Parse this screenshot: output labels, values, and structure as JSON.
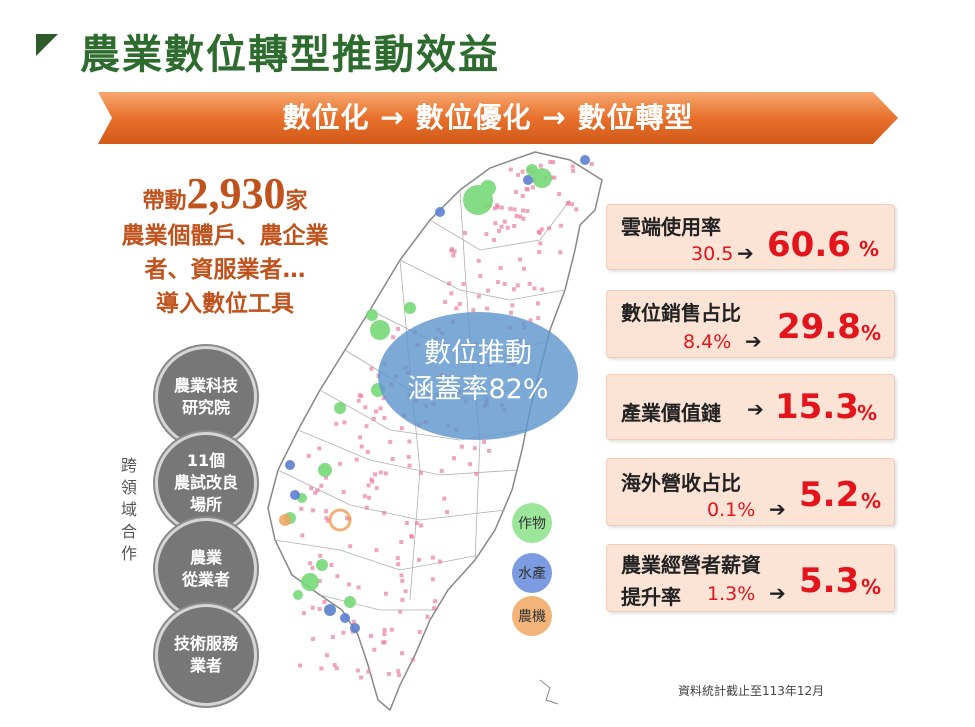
{
  "title": "農業數位轉型推動效益",
  "banner": "數位化 → 數位優化 → 數位轉型",
  "impact": {
    "prefix": "帶動",
    "number": "2,930",
    "suffix": "家",
    "line2": "農業個體戶、農企業",
    "line3": "者、資服業者…",
    "line4": "導入數位工具"
  },
  "coverage": {
    "line1": "數位推動",
    "line2": "涵蓋率82%"
  },
  "cross_domain": "跨領域合作",
  "partners": [
    "農業科技\n研究院",
    "11個\n農試改良\n場所",
    "農業\n從業者",
    "技術服務\n業者"
  ],
  "legend": [
    {
      "label": "作物",
      "color": "#77d977"
    },
    {
      "label": "水產",
      "color": "#5b7fd1"
    },
    {
      "label": "農機",
      "color": "#f0a560"
    }
  ],
  "stats": [
    {
      "label": "雲端使用率",
      "from": "30.5",
      "to": "60.6",
      "unit": "%"
    },
    {
      "label": "數位銷售占比",
      "from": "8.4%",
      "to": "29.8",
      "unit": "%"
    },
    {
      "label": "產業價值鏈",
      "from": "",
      "to": "15.3",
      "unit": "%"
    },
    {
      "label": "海外營收占比",
      "from": "0.1%",
      "to": "5.2",
      "unit": "%"
    },
    {
      "label": "農業經營者薪資",
      "label2": "提升率",
      "from": "1.3%",
      "to": "5.3",
      "unit": "%"
    }
  ],
  "arrow": "➔",
  "source": "資料統計截止至113年12月",
  "colors": {
    "title": "#2e6b2e",
    "banner": "#e86f2c",
    "accent": "#c0531d",
    "stat_bg": "#fbe3d6",
    "highlight": "#e3141b"
  }
}
